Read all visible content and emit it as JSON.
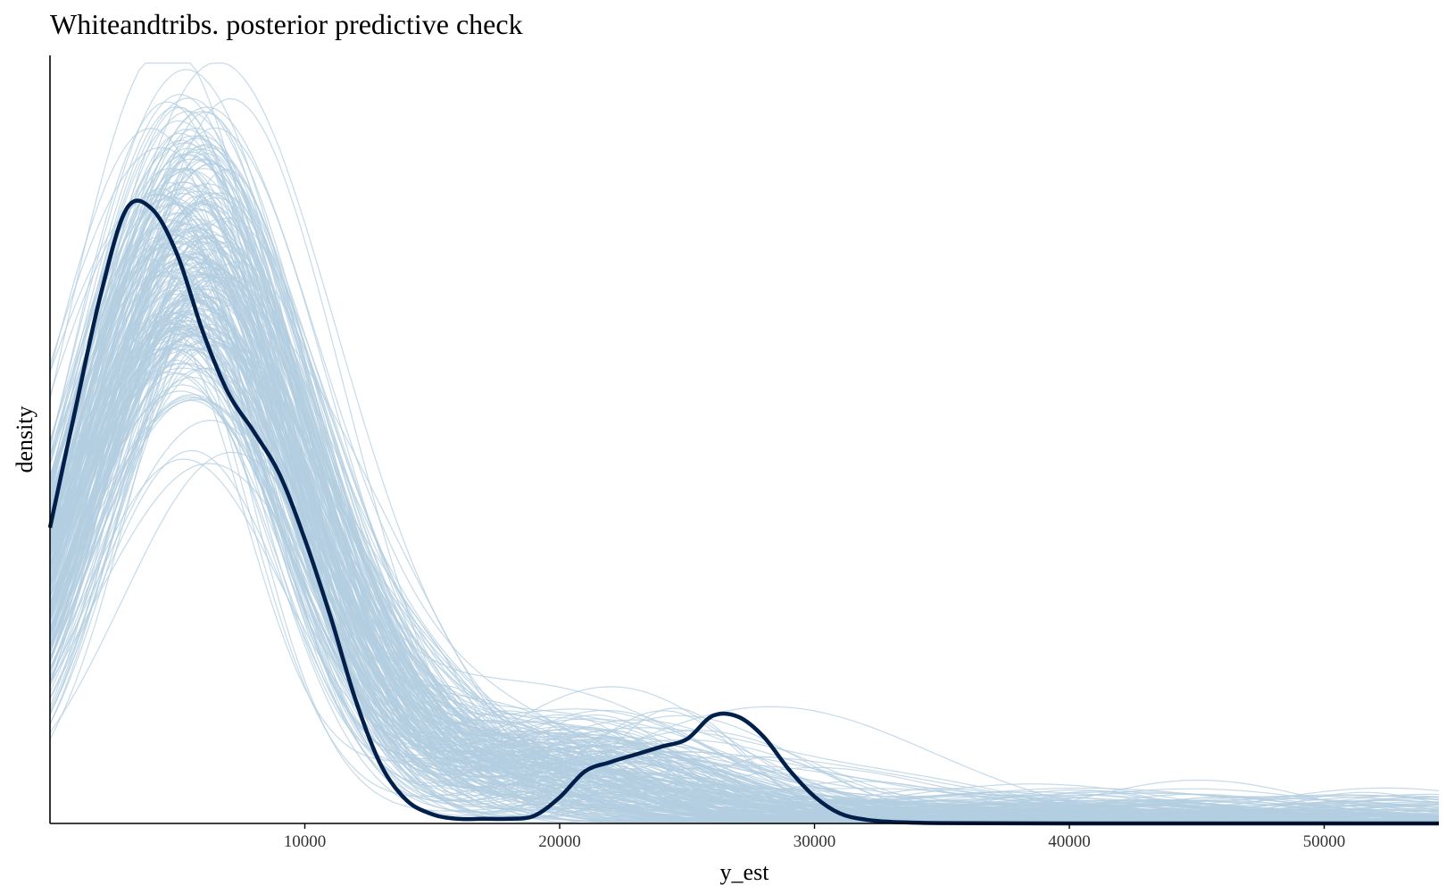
{
  "chart_data": {
    "type": "line",
    "title": "Whiteandtribs. posterior predictive check",
    "xlabel": "y_est",
    "ylabel": "density",
    "xlim": [
      0,
      54500
    ],
    "ylim": [
      0,
      1.0
    ],
    "x_ticks": [
      10000,
      20000,
      30000,
      40000,
      50000
    ],
    "y_ticks_shown": false,
    "grid": false,
    "legend": "none",
    "series": [
      {
        "role": "observed",
        "color": "#011f4b",
        "x": [
          0,
          1000,
          2000,
          3000,
          4000,
          5000,
          6000,
          7000,
          8000,
          9000,
          10000,
          11000,
          12000,
          13000,
          14000,
          15000,
          16000,
          17000,
          18000,
          19000,
          20000,
          21000,
          22000,
          23000,
          24000,
          25000,
          26000,
          27000,
          28000,
          29000,
          30000,
          31000,
          32000,
          33000,
          34000,
          35000,
          40000,
          45000,
          50000,
          54500
        ],
        "y": [
          0.385,
          0.54,
          0.69,
          0.8,
          0.8,
          0.74,
          0.64,
          0.56,
          0.51,
          0.455,
          0.37,
          0.27,
          0.16,
          0.075,
          0.03,
          0.012,
          0.006,
          0.006,
          0.006,
          0.01,
          0.034,
          0.068,
          0.08,
          0.09,
          0.1,
          0.11,
          0.14,
          0.139,
          0.113,
          0.07,
          0.035,
          0.013,
          0.005,
          0.002,
          0.001,
          0.0005,
          0.0,
          0.0,
          0.0,
          0.0
        ]
      }
    ],
    "replicated_draws": {
      "color": "#b3cde0",
      "count": 250
    }
  }
}
